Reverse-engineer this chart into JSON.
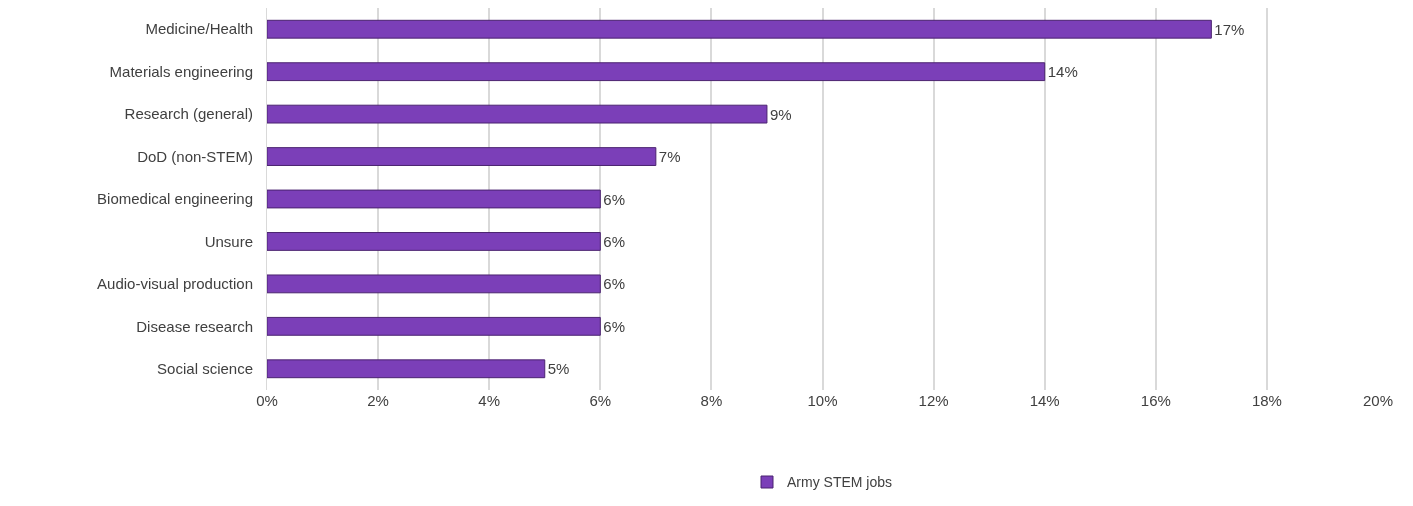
{
  "chart_data": {
    "type": "bar",
    "orientation": "horizontal",
    "categories": [
      "Medicine/Health",
      "Materials engineering",
      "Research (general)",
      "DoD (non-STEM)",
      "Biomedical engineering",
      "Unsure",
      "Audio-visual production",
      "Disease research",
      "Social science"
    ],
    "series": [
      {
        "name": "Army STEM jobs",
        "color": "#7b3fb8",
        "values": [
          17,
          14,
          9,
          7,
          6,
          6,
          6,
          6,
          5
        ],
        "value_labels": [
          "17%",
          "14%",
          "9%",
          "7%",
          "6%",
          "6%",
          "6%",
          "6%",
          "5%"
        ]
      }
    ],
    "xlim": [
      0,
      20
    ],
    "xticks": [
      {
        "value": 0,
        "label": "0%"
      },
      {
        "value": 2,
        "label": "2%"
      },
      {
        "value": 4,
        "label": "4%"
      },
      {
        "value": 6,
        "label": "6%"
      },
      {
        "value": 8,
        "label": "8%"
      },
      {
        "value": 10,
        "label": "10%"
      },
      {
        "value": 12,
        "label": "12%"
      },
      {
        "value": 14,
        "label": "14%"
      },
      {
        "value": 16,
        "label": "16%"
      },
      {
        "value": 18,
        "label": "18%"
      },
      {
        "value": 20,
        "label": "20%"
      }
    ],
    "grid": "x",
    "legend": "bottom"
  }
}
